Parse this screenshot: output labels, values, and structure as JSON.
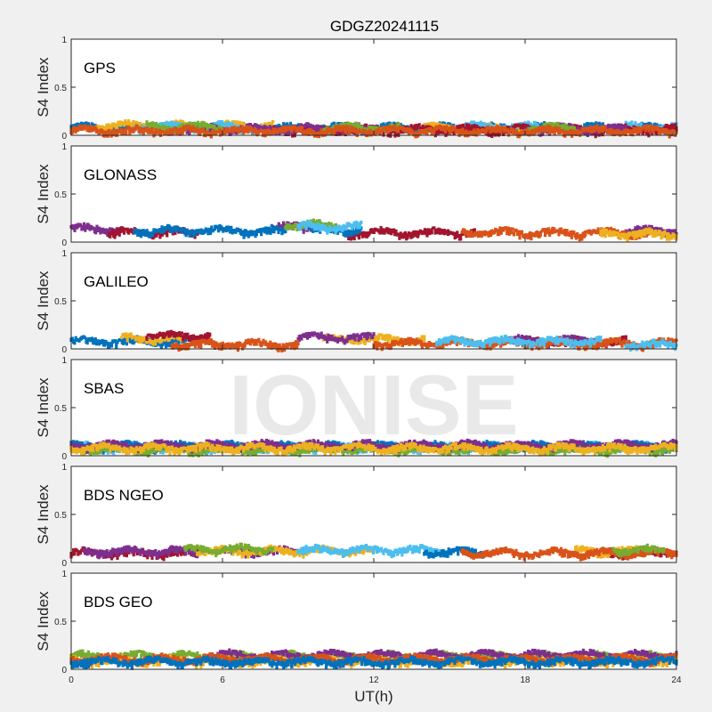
{
  "figure": {
    "title": "GDGZ20241115",
    "xlabel": "UT(h)",
    "ylabel": "S4 Index",
    "watermark": "IONISE",
    "xticks": [
      "0",
      "6",
      "12",
      "18",
      "24"
    ],
    "yticks": [
      "0",
      "0.5",
      "1"
    ],
    "xlim": [
      0,
      24
    ],
    "ylim": [
      0,
      1
    ]
  },
  "colors": {
    "background": "#f0f0f0",
    "axes_bg": "#ffffff",
    "watermark": "#e3e3e3",
    "series": [
      "#0072bd",
      "#d95319",
      "#edb120",
      "#7e2f8e",
      "#77ac30",
      "#4dbeee",
      "#a2142f"
    ]
  },
  "chart_data": [
    {
      "type": "scatter",
      "label": "GPS",
      "xlim": [
        0,
        24
      ],
      "ylim": [
        0,
        1
      ],
      "series": [
        {
          "color_index": 0,
          "segments": [
            [
              0,
              24,
              0.08
            ]
          ]
        },
        {
          "color_index": 2,
          "segments": [
            [
              1.0,
              8.0,
              0.1
            ],
            [
              14,
              18,
              0.08
            ]
          ]
        },
        {
          "color_index": 5,
          "segments": [
            [
              2.5,
              7.5,
              0.09
            ],
            [
              15,
              18.5,
              0.09
            ],
            [
              22,
              24,
              0.09
            ]
          ]
        },
        {
          "color_index": 6,
          "segments": [
            [
              8,
              16,
              0.06
            ],
            [
              16,
              24,
              0.06
            ]
          ]
        },
        {
          "color_index": 3,
          "segments": [
            [
              4,
              12,
              0.07
            ],
            [
              18,
              22,
              0.07
            ]
          ]
        },
        {
          "color_index": 4,
          "segments": [
            [
              3,
              6,
              0.09
            ],
            [
              10,
              13,
              0.08
            ],
            [
              18,
              20,
              0.08
            ]
          ]
        },
        {
          "color_index": 1,
          "segments": [
            [
              0,
              24,
              0.05
            ]
          ]
        }
      ]
    },
    {
      "type": "scatter",
      "label": "GLONASS",
      "xlim": [
        0,
        24
      ],
      "ylim": [
        0,
        1
      ],
      "series": [
        {
          "color_index": 3,
          "segments": [
            [
              0,
              2,
              0.14
            ],
            [
              8,
              9.5,
              0.16
            ],
            [
              22,
              24,
              0.12
            ]
          ]
        },
        {
          "color_index": 6,
          "segments": [
            [
              1.5,
              5,
              0.1
            ],
            [
              11,
              16,
              0.1
            ]
          ]
        },
        {
          "color_index": 0,
          "segments": [
            [
              2.5,
              8.5,
              0.12
            ],
            [
              9.5,
              11.5,
              0.13
            ]
          ]
        },
        {
          "color_index": 4,
          "segments": [
            [
              8.5,
              10.5,
              0.18
            ]
          ]
        },
        {
          "color_index": 5,
          "segments": [
            [
              9,
              11.5,
              0.16
            ]
          ]
        },
        {
          "color_index": 1,
          "segments": [
            [
              15.5,
              23,
              0.1
            ]
          ]
        },
        {
          "color_index": 2,
          "segments": [
            [
              21,
              24,
              0.09
            ]
          ]
        }
      ]
    },
    {
      "type": "scatter",
      "label": "GALILEO",
      "xlim": [
        0,
        24
      ],
      "ylim": [
        0,
        1
      ],
      "series": [
        {
          "color_index": 0,
          "segments": [
            [
              0,
              5,
              0.08
            ]
          ]
        },
        {
          "color_index": 2,
          "segments": [
            [
              2,
              4.5,
              0.11
            ],
            [
              10,
              14,
              0.1
            ]
          ]
        },
        {
          "color_index": 6,
          "segments": [
            [
              3,
              5.5,
              0.14
            ],
            [
              18,
              22,
              0.08
            ]
          ]
        },
        {
          "color_index": 3,
          "segments": [
            [
              9,
              12,
              0.12
            ],
            [
              17,
              21,
              0.09
            ]
          ]
        },
        {
          "color_index": 1,
          "segments": [
            [
              4,
              9,
              0.05
            ],
            [
              12,
              18,
              0.06
            ],
            [
              18,
              24,
              0.06
            ]
          ]
        },
        {
          "color_index": 5,
          "segments": [
            [
              14.5,
              21,
              0.08
            ],
            [
              22,
              24,
              0.05
            ]
          ]
        }
      ]
    },
    {
      "type": "scatter",
      "label": "SBAS",
      "xlim": [
        0,
        24
      ],
      "ylim": [
        0,
        1
      ],
      "series": [
        {
          "color_index": 5,
          "segments": [
            [
              0,
              24,
              0.09
            ]
          ]
        },
        {
          "color_index": 0,
          "segments": [
            [
              0,
              24,
              0.1
            ]
          ]
        },
        {
          "color_index": 4,
          "segments": [
            [
              0,
              24,
              0.07
            ]
          ]
        },
        {
          "color_index": 3,
          "segments": [
            [
              0,
              24,
              0.11
            ]
          ]
        },
        {
          "color_index": 2,
          "segments": [
            [
              0,
              24,
              0.08
            ]
          ]
        }
      ]
    },
    {
      "type": "scatter",
      "label": "BDS NGEO",
      "xlim": [
        0,
        24
      ],
      "ylim": [
        0,
        1
      ],
      "series": [
        {
          "color_index": 6,
          "segments": [
            [
              0,
              5,
              0.1
            ],
            [
              21,
              24,
              0.11
            ]
          ]
        },
        {
          "color_index": 3,
          "segments": [
            [
              0.5,
              5,
              0.12
            ],
            [
              6,
              9,
              0.12
            ]
          ]
        },
        {
          "color_index": 2,
          "segments": [
            [
              5,
              12,
              0.12
            ],
            [
              20,
              22.5,
              0.12
            ]
          ]
        },
        {
          "color_index": 5,
          "segments": [
            [
              9,
              15,
              0.13
            ]
          ]
        },
        {
          "color_index": 0,
          "segments": [
            [
              14,
              16.5,
              0.11
            ]
          ]
        },
        {
          "color_index": 1,
          "segments": [
            [
              15.5,
              24,
              0.1
            ]
          ]
        },
        {
          "color_index": 4,
          "segments": [
            [
              4.5,
              8,
              0.14
            ],
            [
              21.5,
              23.5,
              0.13
            ]
          ]
        }
      ]
    },
    {
      "type": "scatter",
      "label": "BDS GEO",
      "xlim": [
        0,
        24
      ],
      "ylim": [
        0,
        1
      ],
      "series": [
        {
          "color_index": 4,
          "segments": [
            [
              0,
              24,
              0.14
            ]
          ]
        },
        {
          "color_index": 3,
          "segments": [
            [
              5.5,
              24,
              0.15
            ]
          ]
        },
        {
          "color_index": 2,
          "segments": [
            [
              0,
              24,
              0.09
            ]
          ]
        },
        {
          "color_index": 1,
          "segments": [
            [
              0,
              24,
              0.11
            ]
          ]
        },
        {
          "color_index": 0,
          "segments": [
            [
              0,
              24,
              0.08
            ]
          ]
        }
      ]
    }
  ]
}
